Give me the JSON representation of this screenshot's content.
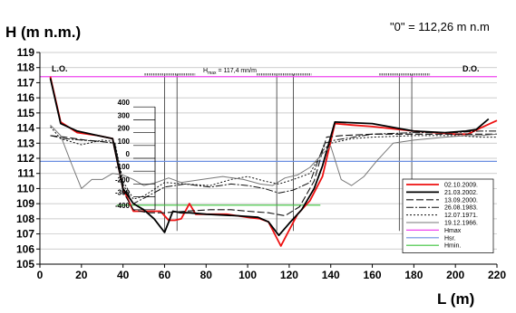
{
  "chart_data": {
    "type": "line",
    "title_left": "H (m n.m.)",
    "title_right": "\"0\" = 112,26 m n.m",
    "xlabel": "L (m)",
    "xlim": [
      0,
      220
    ],
    "ylim": [
      105,
      119
    ],
    "x_ticks": [
      0,
      20,
      40,
      60,
      80,
      100,
      120,
      140,
      160,
      180,
      200,
      220
    ],
    "y_ticks": [
      105,
      106,
      107,
      108,
      109,
      110,
      111,
      112,
      113,
      114,
      115,
      116,
      117,
      118,
      119
    ],
    "inner_scale": {
      "ticks": [
        400,
        300,
        200,
        100,
        0,
        -100,
        -200,
        -300,
        -400
      ],
      "zero_level": 112.0
    },
    "bank_labels": {
      "left": "L.O.",
      "right": "D.O."
    },
    "hmax_label": "H",
    "hmax_sub": "max",
    "hmax_text": " = 117,4 mn/m",
    "structures": [
      {
        "x1": 60,
        "x2": 66,
        "ytop": 117.55
      },
      {
        "x1": 114,
        "x2": 122,
        "ytop": 117.55
      },
      {
        "x1": 173,
        "x2": 179,
        "ytop": 117.55
      }
    ],
    "hlines": [
      {
        "name": "Hmax",
        "y": 117.4,
        "color": "#ee44ee"
      },
      {
        "name": "Hsr.",
        "y": 111.8,
        "color": "#6a8ee0"
      },
      {
        "name": "Hmin.",
        "y": 108.9,
        "color": "#3cc43c",
        "x_range": [
          37,
          135
        ]
      }
    ],
    "series": [
      {
        "name": "02.10.2009.",
        "color": "#ee1111",
        "width": 1.8,
        "dash": "",
        "x": [
          5,
          10,
          18,
          28,
          35,
          40,
          45,
          50,
          58,
          62,
          65,
          68,
          72,
          75,
          90,
          100,
          106,
          110,
          116,
          124,
          130,
          136,
          142,
          150,
          160,
          180,
          190,
          200,
          206,
          212,
          220
        ],
        "y": [
          117.4,
          114.4,
          113.7,
          113.5,
          113.3,
          110.0,
          108.5,
          108.5,
          108.5,
          107.9,
          107.9,
          108.0,
          109.0,
          108.3,
          108.3,
          108.1,
          108.0,
          107.8,
          106.2,
          108.3,
          109.2,
          110.8,
          114.3,
          114.2,
          114.1,
          113.8,
          113.7,
          113.6,
          113.6,
          114.0,
          114.5
        ]
      },
      {
        "name": "21.03.2002.",
        "color": "#000000",
        "width": 1.8,
        "dash": "",
        "x": [
          5,
          10,
          18,
          28,
          35,
          40,
          45,
          50,
          55,
          60,
          64,
          68,
          72,
          80,
          95,
          105,
          110,
          115,
          120,
          126,
          132,
          136,
          142,
          160,
          172,
          180,
          195,
          205,
          210,
          216
        ],
        "y": [
          117.3,
          114.3,
          113.8,
          113.5,
          113.3,
          110.0,
          109.0,
          108.6,
          108.0,
          107.1,
          108.5,
          108.4,
          108.4,
          108.3,
          108.2,
          108.1,
          107.8,
          106.9,
          107.7,
          108.6,
          110.0,
          111.5,
          114.4,
          114.3,
          114.0,
          113.8,
          113.7,
          113.8,
          113.9,
          114.6
        ]
      },
      {
        "name": "13.09.2000.",
        "color": "#111111",
        "width": 1.1,
        "dash": "8,3",
        "x": [
          5,
          12,
          22,
          30,
          36,
          40,
          45,
          52,
          60,
          70,
          82,
          92,
          100,
          110,
          118,
          125,
          132,
          138,
          145,
          160,
          180,
          200,
          212,
          220
        ],
        "y": [
          113.5,
          113.4,
          113.2,
          113.1,
          113.0,
          109.8,
          108.6,
          108.4,
          108.4,
          108.5,
          108.6,
          108.6,
          108.5,
          108.4,
          108.2,
          108.8,
          110.5,
          113.4,
          113.5,
          113.6,
          113.6,
          113.6,
          113.6,
          113.6
        ]
      },
      {
        "name": "26.08.1983.",
        "color": "#111111",
        "width": 1.0,
        "dash": "8,2,2,2",
        "x": [
          5,
          12,
          20,
          30,
          36,
          40,
          45,
          52,
          60,
          70,
          82,
          92,
          100,
          108,
          115,
          122,
          130,
          137,
          142,
          160,
          180,
          200,
          212,
          220
        ],
        "y": [
          113.5,
          113.3,
          113.2,
          113.1,
          113.0,
          110.3,
          109.0,
          109.5,
          110.1,
          110.3,
          110.1,
          110.3,
          110.2,
          110.0,
          109.7,
          109.9,
          110.4,
          113.0,
          113.2,
          113.6,
          113.7,
          113.7,
          113.8,
          113.8
        ]
      },
      {
        "name": "12.07.1971.",
        "color": "#111111",
        "width": 1.0,
        "dash": "2,2",
        "x": [
          5,
          10,
          20,
          30,
          36,
          40,
          45,
          50,
          60,
          70,
          82,
          92,
          100,
          108,
          115,
          122,
          130,
          136,
          140,
          150,
          160,
          180,
          200,
          212,
          220
        ],
        "y": [
          114.1,
          113.3,
          112.9,
          113.2,
          113.1,
          110.5,
          109.3,
          109.5,
          110.4,
          110.3,
          110.2,
          110.6,
          110.8,
          110.5,
          110.3,
          110.6,
          111.0,
          112.5,
          113.0,
          113.3,
          113.4,
          113.5,
          113.5,
          113.4,
          113.4
        ]
      },
      {
        "name": "19.12.1966.",
        "color": "#777777",
        "width": 1.0,
        "dash": "",
        "x": [
          5,
          10,
          15,
          20,
          25,
          30,
          35,
          40,
          45,
          50,
          56,
          62,
          68,
          78,
          88,
          98,
          106,
          112,
          118,
          124,
          130,
          136,
          140,
          145,
          150,
          156,
          162,
          170,
          180,
          195,
          205,
          212,
          220
        ],
        "y": [
          114.2,
          113.5,
          111.7,
          110.0,
          110.6,
          110.6,
          111.0,
          110.9,
          110.6,
          110.2,
          110.4,
          110.7,
          110.4,
          110.6,
          110.8,
          110.6,
          110.3,
          110.2,
          110.7,
          110.9,
          111.4,
          112.3,
          112.8,
          110.6,
          110.2,
          110.8,
          111.8,
          113.0,
          113.2,
          113.4,
          113.5,
          113.5,
          113.6
        ]
      }
    ],
    "legend_entries": [
      "02.10.2009.",
      "21.03.2002.",
      "13.09.2000.",
      "26.08.1983.",
      "12.07.1971.",
      "19.12.1966.",
      "Hmax",
      "Hsr.",
      "Hmin."
    ],
    "legend_position": "right-middle"
  }
}
